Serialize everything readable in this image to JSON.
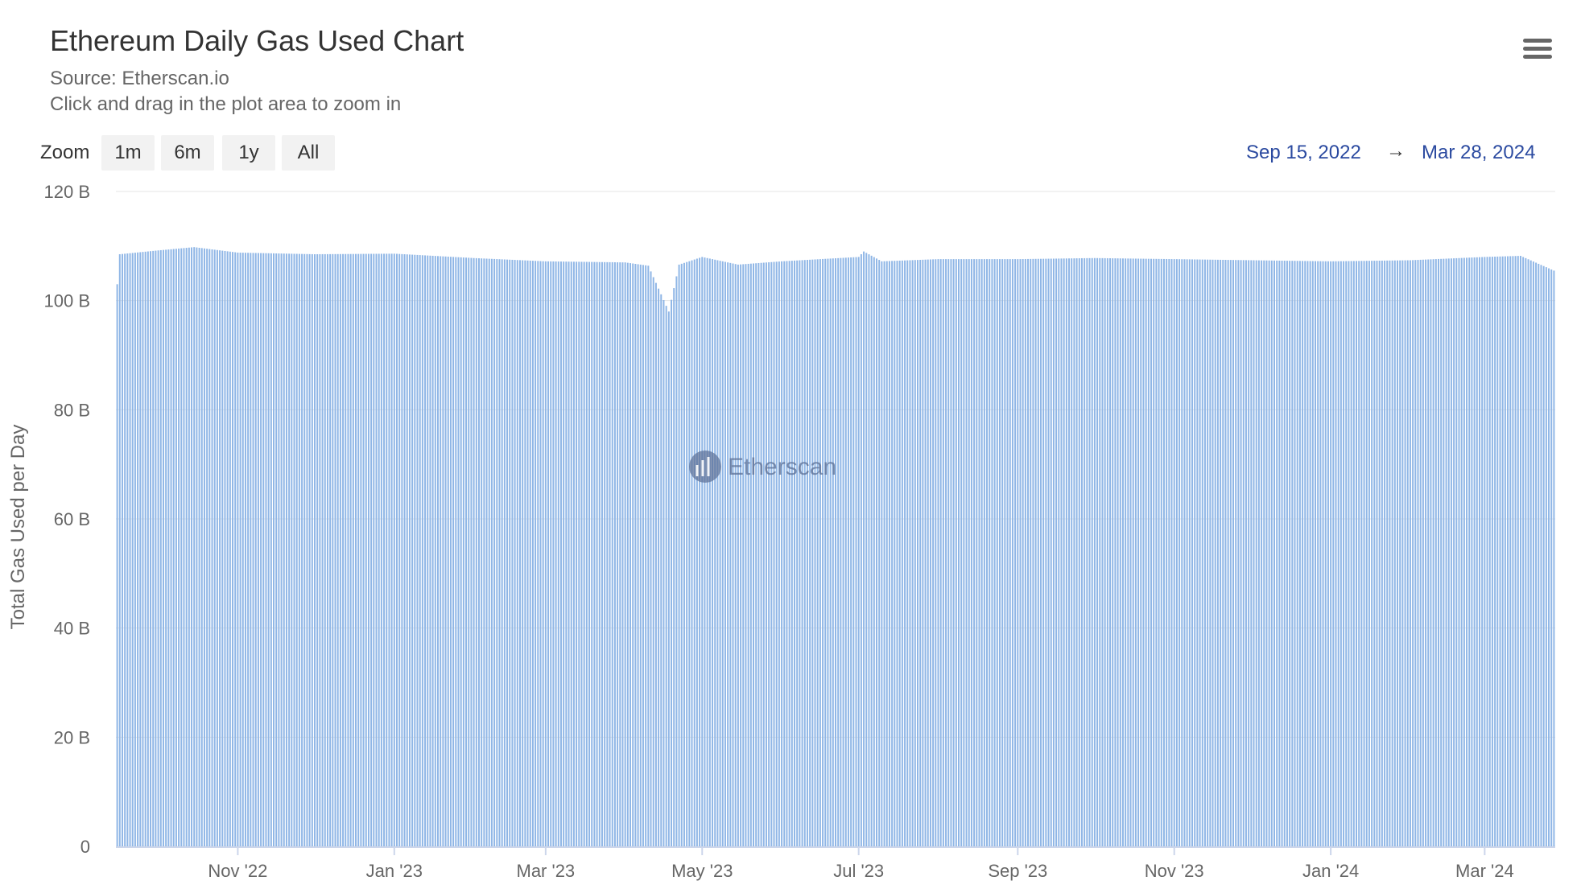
{
  "header": {
    "title": "Ethereum Daily Gas Used Chart",
    "source": "Source: Etherscan.io",
    "hint": "Click and drag in the plot area to zoom in"
  },
  "zoom": {
    "label": "Zoom",
    "buttons": [
      "1m",
      "6m",
      "1y",
      "All"
    ]
  },
  "range": {
    "from": "Sep 15, 2022",
    "arrow": "→",
    "to": "Mar 28, 2024"
  },
  "watermark": "Etherscan",
  "colors": {
    "bar": "#8fb6e6",
    "range_text": "#2b4aa0",
    "grid": "#e6e6e6"
  },
  "chart_data": {
    "type": "bar",
    "title": "Ethereum Daily Gas Used Chart",
    "ylabel": "Total Gas Used per Day",
    "ylim": [
      0,
      120
    ],
    "y_unit": "B",
    "y_ticks": [
      0,
      20,
      40,
      60,
      80,
      100,
      120
    ],
    "y_tick_labels": [
      "0",
      "20 B",
      "40 B",
      "60 B",
      "80 B",
      "100 B",
      "120 B"
    ],
    "x_start": "2022-09-15",
    "x_end": "2024-03-28",
    "x_ticks": [
      {
        "date": "2022-11-01",
        "label": "Nov '22"
      },
      {
        "date": "2023-01-01",
        "label": "Jan '23"
      },
      {
        "date": "2023-03-01",
        "label": "Mar '23"
      },
      {
        "date": "2023-05-01",
        "label": "May '23"
      },
      {
        "date": "2023-07-01",
        "label": "Jul '23"
      },
      {
        "date": "2023-09-01",
        "label": "Sep '23"
      },
      {
        "date": "2023-11-01",
        "label": "Nov '23"
      },
      {
        "date": "2024-01-01",
        "label": "Jan '24"
      },
      {
        "date": "2024-03-01",
        "label": "Mar '24"
      }
    ],
    "series": [
      {
        "values": [
          {
            "date": "2022-09-15",
            "y": 103.0
          },
          {
            "date": "2022-09-16",
            "y": 108.5
          },
          {
            "date": "2022-10-01",
            "y": 109.2
          },
          {
            "date": "2022-10-15",
            "y": 109.8
          },
          {
            "date": "2022-11-01",
            "y": 108.8
          },
          {
            "date": "2022-12-01",
            "y": 108.5
          },
          {
            "date": "2023-01-01",
            "y": 108.6
          },
          {
            "date": "2023-02-01",
            "y": 107.8
          },
          {
            "date": "2023-03-01",
            "y": 107.2
          },
          {
            "date": "2023-04-01",
            "y": 107.0
          },
          {
            "date": "2023-04-10",
            "y": 106.4
          },
          {
            "date": "2023-04-18",
            "y": 98.0
          },
          {
            "date": "2023-04-22",
            "y": 106.6
          },
          {
            "date": "2023-05-01",
            "y": 108.0
          },
          {
            "date": "2023-05-15",
            "y": 106.6
          },
          {
            "date": "2023-06-01",
            "y": 107.2
          },
          {
            "date": "2023-07-01",
            "y": 108.0
          },
          {
            "date": "2023-07-03",
            "y": 109.0
          },
          {
            "date": "2023-07-10",
            "y": 107.2
          },
          {
            "date": "2023-08-01",
            "y": 107.6
          },
          {
            "date": "2023-09-01",
            "y": 107.6
          },
          {
            "date": "2023-10-01",
            "y": 107.8
          },
          {
            "date": "2023-11-01",
            "y": 107.6
          },
          {
            "date": "2023-12-01",
            "y": 107.4
          },
          {
            "date": "2024-01-01",
            "y": 107.2
          },
          {
            "date": "2024-02-01",
            "y": 107.4
          },
          {
            "date": "2024-03-01",
            "y": 108.0
          },
          {
            "date": "2024-03-15",
            "y": 108.2
          },
          {
            "date": "2024-03-28",
            "y": 105.5
          }
        ]
      }
    ]
  }
}
